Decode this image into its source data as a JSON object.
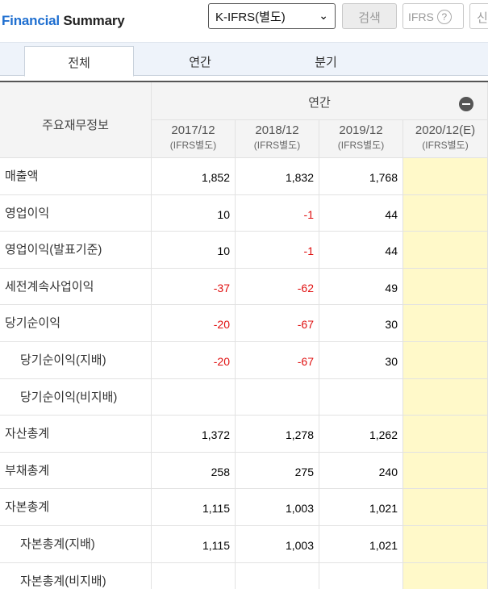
{
  "header": {
    "title_accent": "Financial",
    "title_rest": "Summary",
    "standard_select": "K-IFRS(별도)",
    "search_button": "검색",
    "ifrs_button": "IFRS",
    "ifrs_help": "?",
    "cut_button": "신"
  },
  "tabs": [
    "전체",
    "연간",
    "분기"
  ],
  "table": {
    "row_header": "주요재무정보",
    "group_header": "연간",
    "periods": [
      "2017/12",
      "2018/12",
      "2019/12",
      "2020/12(E)"
    ],
    "period_basis": [
      "(IFRS별도)",
      "(IFRS별도)",
      "(IFRS별도)",
      "(IFRS별도)"
    ],
    "rows": [
      {
        "label": "매출액",
        "indent": false,
        "values": [
          "1,852",
          "1,832",
          "1,768",
          ""
        ]
      },
      {
        "label": "영업이익",
        "indent": false,
        "values": [
          "10",
          "-1",
          "44",
          ""
        ]
      },
      {
        "label": "영업이익(발표기준)",
        "indent": false,
        "values": [
          "10",
          "-1",
          "44",
          ""
        ]
      },
      {
        "label": "세전계속사업이익",
        "indent": false,
        "values": [
          "-37",
          "-62",
          "49",
          ""
        ]
      },
      {
        "label": "당기순이익",
        "indent": false,
        "values": [
          "-20",
          "-67",
          "30",
          ""
        ]
      },
      {
        "label": "당기순이익(지배)",
        "indent": true,
        "values": [
          "-20",
          "-67",
          "30",
          ""
        ]
      },
      {
        "label": "당기순이익(비지배)",
        "indent": true,
        "values": [
          "",
          "",
          "",
          ""
        ]
      },
      {
        "label": "자산총계",
        "indent": false,
        "values": [
          "1,372",
          "1,278",
          "1,262",
          ""
        ]
      },
      {
        "label": "부채총계",
        "indent": false,
        "values": [
          "258",
          "275",
          "240",
          ""
        ]
      },
      {
        "label": "자본총계",
        "indent": false,
        "values": [
          "1,115",
          "1,003",
          "1,021",
          ""
        ]
      },
      {
        "label": "자본총계(지배)",
        "indent": true,
        "values": [
          "1,115",
          "1,003",
          "1,021",
          ""
        ]
      },
      {
        "label": "자본총계(비지배)",
        "indent": true,
        "values": [
          "",
          "",
          "",
          ""
        ]
      }
    ]
  },
  "colors": {
    "accent": "#1f6fd0",
    "negative": "#e01010",
    "estimate_bg": "#fff9c9",
    "tab_bg": "#eef3fa"
  }
}
